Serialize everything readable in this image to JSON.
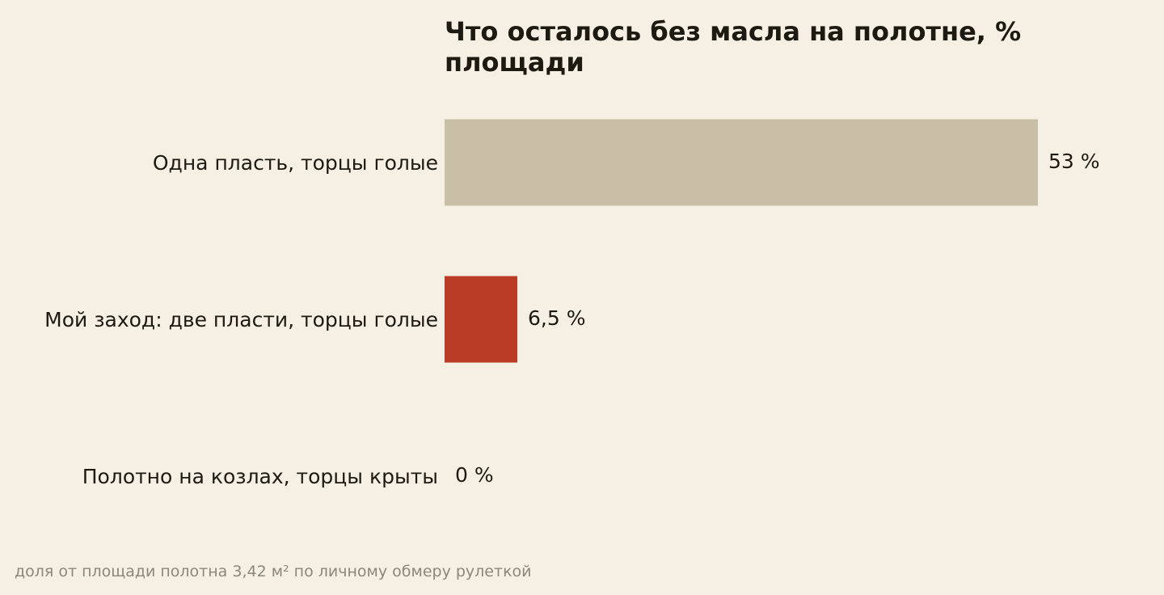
{
  "chart_data": {
    "type": "bar",
    "orientation": "horizontal",
    "title": "Что осталось без масла на полотне, % площади",
    "categories": [
      "Одна пласть, торцы голые",
      "Мой заход: две пласти, торцы голые",
      "Полотно на козлах, торцы крыты"
    ],
    "values": [
      53,
      6.5,
      0
    ],
    "value_labels": [
      "53 %",
      "6,5 %",
      "0 %"
    ],
    "bar_colors": [
      "#c9bfa6",
      "#bb3c26",
      "#c9bfa6"
    ],
    "xlim": [
      0,
      53
    ],
    "xlabel": "",
    "ylabel": "",
    "grid": false,
    "legend": "none"
  },
  "footnote": "доля от площади полотна 3,42 м² по личному обмеру рулеткой"
}
